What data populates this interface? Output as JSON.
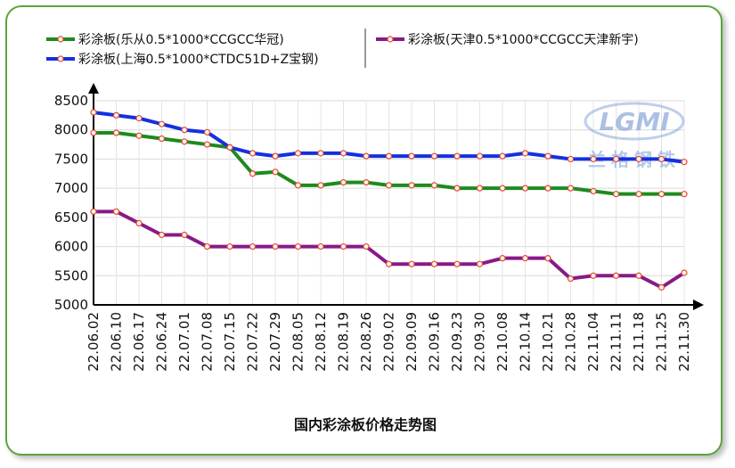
{
  "chart_data": {
    "type": "line",
    "title": "国内彩涂板价格走势图",
    "xlabel": "",
    "ylabel": "",
    "ylim": [
      5000,
      8500
    ],
    "yticks": [
      5000,
      5500,
      6000,
      6500,
      7000,
      7500,
      8000,
      8500
    ],
    "grid": true,
    "legend_position": "top",
    "categories": [
      "22.06.02",
      "22.06.10",
      "22.06.17",
      "22.06.24",
      "22.07.01",
      "22.07.08",
      "22.07.15",
      "22.07.22",
      "22.07.29",
      "22.08.05",
      "22.08.12",
      "22.08.19",
      "22.08.26",
      "22.09.02",
      "22.09.09",
      "22.09.16",
      "22.09.23",
      "22.09.30",
      "22.10.08",
      "22.10.14",
      "22.10.21",
      "22.10.28",
      "22.11.04",
      "22.11.11",
      "22.11.18",
      "22.11.25",
      "22.11.30"
    ],
    "series": [
      {
        "name": "彩涂板(乐从0.5*1000*CCGCC华冠)",
        "color": "#1e8a1e",
        "values": [
          7950,
          7950,
          7900,
          7850,
          7800,
          7750,
          7700,
          7250,
          7280,
          7050,
          7050,
          7100,
          7100,
          7050,
          7050,
          7050,
          7000,
          7000,
          7000,
          7000,
          7000,
          7000,
          6950,
          6900,
          6900,
          6900,
          6900
        ]
      },
      {
        "name": "彩涂板(上海0.5*1000*CTDC51D+Z宝钢)",
        "color": "#1430e0",
        "values": [
          8300,
          8250,
          8200,
          8100,
          8000,
          7960,
          7700,
          7600,
          7550,
          7600,
          7600,
          7600,
          7550,
          7550,
          7550,
          7550,
          7550,
          7550,
          7550,
          7600,
          7550,
          7500,
          7500,
          7500,
          7500,
          7500,
          7450
        ]
      },
      {
        "name": "彩涂板(天津0.5*1000*CCGCC天津新宇)",
        "color": "#881a88",
        "values": [
          6600,
          6600,
          6400,
          6200,
          6200,
          6000,
          6000,
          6000,
          6000,
          6000,
          6000,
          6000,
          6000,
          5700,
          5700,
          5700,
          5700,
          5700,
          5800,
          5800,
          5800,
          5450,
          5500,
          5500,
          5500,
          5300,
          5550
        ]
      }
    ]
  },
  "watermark": {
    "text": "LGMI",
    "subtitle": "兰格钢铁"
  }
}
